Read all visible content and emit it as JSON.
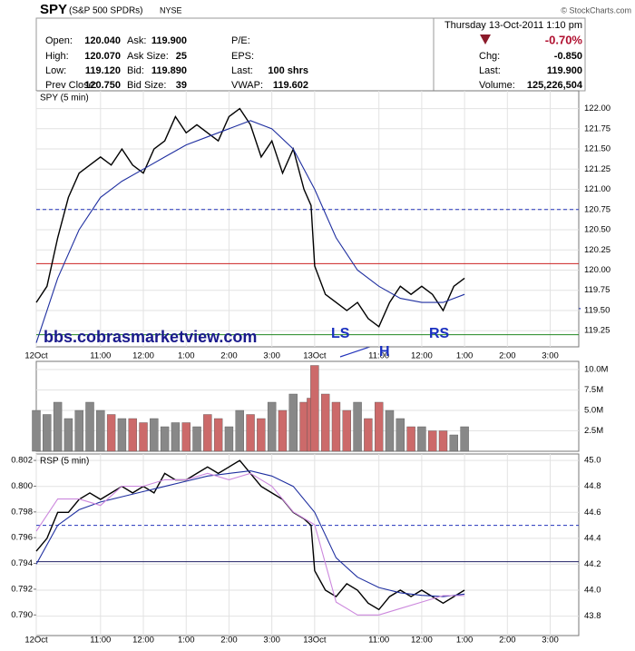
{
  "header": {
    "symbol": "SPY",
    "name": "(S&P 500 SPDRs)",
    "exchange": "NYSE",
    "copyright": "© StockCharts.com",
    "datetime": "Thursday 13-Oct-2011 1:10 pm",
    "change_pct": "-0.70%",
    "quote": [
      [
        [
          "Open:",
          "120.040"
        ],
        [
          "High:",
          "120.070"
        ],
        [
          "Low:",
          "119.120"
        ],
        [
          "Prev Close:",
          "120.750"
        ]
      ],
      [
        [
          "Ask:",
          "119.900"
        ],
        [
          "Ask Size:",
          "25"
        ],
        [
          "Bid:",
          "119.890"
        ],
        [
          "Bid Size:",
          "39"
        ]
      ],
      [
        [
          "P/E:"
        ],
        [
          "EPS:"
        ],
        [
          "Last:",
          "100 shrs"
        ],
        [
          "VWAP:",
          "119.602"
        ]
      ]
    ],
    "summary": [
      [
        "Chg:",
        "-0.850"
      ],
      [
        "Last:",
        "119.900"
      ],
      [
        "Volume:",
        "125,226,504"
      ]
    ]
  },
  "chart_data": [
    {
      "type": "line",
      "title": "SPY (5 min)",
      "x": [
        0,
        3,
        6,
        9,
        12,
        15,
        18,
        21,
        24,
        27,
        30,
        33,
        36,
        39,
        42,
        45,
        48,
        51,
        54,
        57,
        60,
        63,
        66,
        69,
        72,
        75,
        77,
        78,
        81,
        84,
        87,
        90,
        93,
        96,
        99,
        102,
        105,
        108,
        111,
        114,
        117,
        120
      ],
      "xlim": [
        0,
        152
      ],
      "xticks": [
        {
          "value": 0,
          "label": "12Oct"
        },
        {
          "value": 18,
          "label": "11:00"
        },
        {
          "value": 30,
          "label": "12:00"
        },
        {
          "value": 42,
          "label": "1:00"
        },
        {
          "value": 54,
          "label": "2:00"
        },
        {
          "value": 66,
          "label": "3:00"
        },
        {
          "value": 78,
          "label": "13Oct"
        },
        {
          "value": 96,
          "label": "11:00"
        },
        {
          "value": 108,
          "label": "12:00"
        },
        {
          "value": 120,
          "label": "1:00"
        },
        {
          "value": 132,
          "label": "2:00"
        },
        {
          "value": 144,
          "label": "3:00"
        }
      ],
      "ylim": [
        119.05,
        122.22
      ],
      "yticks": [
        {
          "value": 122,
          "label": "122.00"
        },
        121.75,
        {
          "value": 121.5,
          "label": "121.50"
        },
        121.25,
        {
          "value": 121,
          "label": "121.00"
        },
        120.75,
        {
          "value": 120.5,
          "label": "120.50"
        },
        120.25,
        {
          "value": 120,
          "label": "120.00"
        },
        119.75,
        {
          "value": 119.5,
          "label": "119.50"
        },
        119.25
      ],
      "grid": true,
      "series": [
        {
          "color": "#000000",
          "values": [
            119.6,
            119.8,
            120.4,
            120.9,
            121.2,
            121.3,
            121.4,
            121.3,
            121.5,
            121.3,
            121.2,
            121.5,
            121.6,
            121.9,
            121.7,
            121.8,
            121.7,
            121.6,
            121.9,
            122.0,
            121.8,
            121.4,
            121.6,
            121.2,
            121.5,
            121.0,
            120.8,
            120.05,
            119.7,
            119.6,
            119.5,
            119.6,
            119.4,
            119.3,
            119.6,
            119.8,
            119.7,
            119.8,
            119.7,
            119.5,
            119.8,
            119.9
          ]
        },
        {
          "color": "#1f2fa0",
          "x": [
            0,
            6,
            12,
            18,
            24,
            30,
            36,
            42,
            48,
            54,
            60,
            66,
            72,
            78,
            84,
            90,
            96,
            102,
            108,
            114,
            120
          ],
          "values": [
            119.1,
            119.9,
            120.5,
            120.9,
            121.1,
            121.25,
            121.4,
            121.55,
            121.65,
            121.75,
            121.85,
            121.75,
            121.5,
            121.0,
            120.4,
            120.0,
            119.8,
            119.65,
            119.6,
            119.6,
            119.7
          ]
        }
      ],
      "hlines": [
        {
          "value": 120.08,
          "color": "#cc2222",
          "dashed": false
        },
        {
          "value": 120.75,
          "color": "#2233bb",
          "dashed": true
        },
        {
          "value": 119.2,
          "color": "#228822",
          "dashed": false
        }
      ],
      "annotations": [
        "bbs.cobrasmarketview.com",
        "LS",
        "H",
        "RS"
      ]
    },
    {
      "type": "bar",
      "x": [
        0,
        3,
        6,
        9,
        12,
        15,
        18,
        21,
        24,
        27,
        30,
        33,
        36,
        39,
        42,
        45,
        48,
        51,
        54,
        57,
        60,
        63,
        66,
        69,
        72,
        75,
        77,
        78,
        81,
        84,
        87,
        90,
        93,
        96,
        99,
        102,
        105,
        108,
        111,
        114,
        117,
        120
      ],
      "xlim": [
        0,
        152
      ],
      "ylim": [
        0,
        11000000
      ],
      "yticks": [
        {
          "value": 10000000,
          "label": "10.0M"
        },
        {
          "value": 7500000,
          "label": "7.5M"
        },
        {
          "value": 5000000,
          "label": "5.0M"
        },
        {
          "value": 2500000,
          "label": "2.5M"
        }
      ],
      "grid": true,
      "up_color": "#888888",
      "down_color": "#cc6a6a",
      "values": [
        5000000,
        4500000,
        6000000,
        4000000,
        5000000,
        6000000,
        5000000,
        4500000,
        4000000,
        4000000,
        3500000,
        4000000,
        3000000,
        3500000,
        3500000,
        3000000,
        4500000,
        4000000,
        3000000,
        5000000,
        4500000,
        4000000,
        6000000,
        5000000,
        7000000,
        6000000,
        6500000,
        10500000,
        7000000,
        6000000,
        5000000,
        6000000,
        4000000,
        6000000,
        5000000,
        4000000,
        3000000,
        3000000,
        2500000,
        2500000,
        2000000,
        3000000
      ]
    },
    {
      "type": "line",
      "title": "RSP (5 min)",
      "x": [
        0,
        3,
        6,
        9,
        12,
        15,
        18,
        21,
        24,
        27,
        30,
        33,
        36,
        39,
        42,
        45,
        48,
        51,
        54,
        57,
        60,
        63,
        66,
        69,
        72,
        75,
        77,
        78,
        81,
        84,
        87,
        90,
        93,
        96,
        99,
        102,
        105,
        108,
        111,
        114,
        117,
        120
      ],
      "xlim": [
        0,
        152
      ],
      "xticks": [
        {
          "value": 0,
          "label": "12Oct"
        },
        {
          "value": 18,
          "label": "11:00"
        },
        {
          "value": 30,
          "label": "12:00"
        },
        {
          "value": 42,
          "label": "1:00"
        },
        {
          "value": 54,
          "label": "2:00"
        },
        {
          "value": 66,
          "label": "3:00"
        },
        {
          "value": 78,
          "label": "13Oct"
        },
        {
          "value": 96,
          "label": "11:00"
        },
        {
          "value": 108,
          "label": "12:00"
        },
        {
          "value": 120,
          "label": "1:00"
        },
        {
          "value": 132,
          "label": "2:00"
        },
        {
          "value": 144,
          "label": "3:00"
        }
      ],
      "ylim": [
        43.65,
        45.05
      ],
      "yticks": [
        {
          "value": 45,
          "label": "45.0"
        },
        44.8,
        44.6,
        44.4,
        44.2,
        {
          "value": 44,
          "label": "44.0"
        },
        43.8
      ],
      "y2lim": [
        0.7884,
        0.8025
      ],
      "y2ticks": [
        0.802,
        {
          "value": 0.8,
          "label": "0.800"
        },
        0.798,
        0.796,
        0.794,
        0.792,
        {
          "value": 0.79,
          "label": "0.790"
        }
      ],
      "grid": true,
      "series": [
        {
          "color": "#000000",
          "values": [
            44.3,
            44.4,
            44.6,
            44.6,
            44.7,
            44.75,
            44.7,
            44.75,
            44.8,
            44.75,
            44.8,
            44.75,
            44.9,
            44.85,
            44.85,
            44.9,
            44.95,
            44.9,
            44.95,
            45.0,
            44.9,
            44.8,
            44.75,
            44.7,
            44.6,
            44.55,
            44.5,
            44.15,
            44.0,
            43.95,
            44.05,
            44.0,
            43.9,
            43.85,
            43.95,
            44.0,
            43.95,
            44.0,
            43.95,
            43.9,
            43.95,
            44.0
          ]
        },
        {
          "color": "#1f2fa0",
          "x": [
            0,
            6,
            12,
            18,
            24,
            30,
            36,
            42,
            48,
            54,
            60,
            66,
            72,
            78,
            84,
            90,
            96,
            102,
            108,
            114,
            120
          ],
          "values": [
            44.2,
            44.5,
            44.62,
            44.68,
            44.72,
            44.76,
            44.8,
            44.84,
            44.88,
            44.9,
            44.92,
            44.88,
            44.8,
            44.6,
            44.25,
            44.1,
            44.02,
            43.98,
            43.96,
            43.95,
            43.97
          ]
        },
        {
          "color": "#cc88dd",
          "axis": "y2",
          "x": [
            0,
            6,
            12,
            18,
            24,
            30,
            36,
            42,
            48,
            54,
            60,
            66,
            72,
            78,
            84,
            90,
            96,
            102,
            108,
            114,
            120
          ],
          "values": [
            0.7965,
            0.799,
            0.799,
            0.7985,
            0.8,
            0.8,
            0.8005,
            0.8005,
            0.801,
            0.8005,
            0.801,
            0.8,
            0.798,
            0.797,
            0.791,
            0.79,
            0.79,
            0.7905,
            0.791,
            0.7915,
            0.7915
          ]
        }
      ],
      "hlines": [
        {
          "value": 44.5,
          "color": "#2233bb",
          "dashed": true
        },
        {
          "value": 44.22,
          "color": "#222266",
          "dashed": false
        }
      ]
    }
  ]
}
